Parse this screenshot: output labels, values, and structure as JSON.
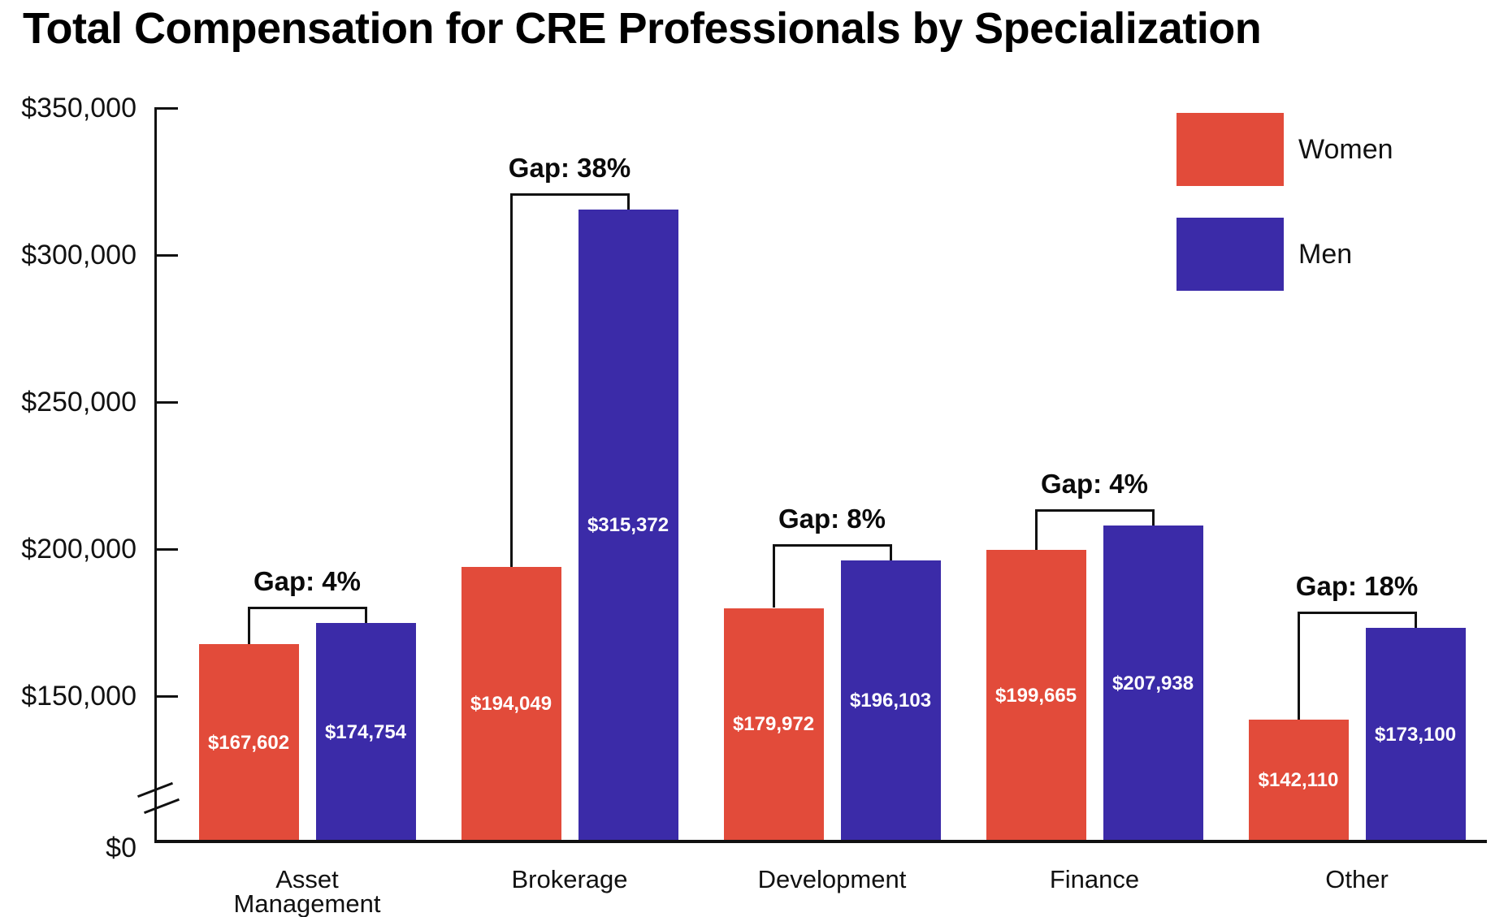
{
  "title": "Total Compensation for CRE Professionals by Specialization",
  "legend": [
    {
      "label": "Women",
      "color": "#E24B3A"
    },
    {
      "label": "Men",
      "color": "#3B2BA8"
    }
  ],
  "colors": {
    "women": "#E24B3A",
    "men": "#3B2BA8",
    "axis": "#111111",
    "gap_text": "#0a0a0a",
    "value_text": "#ffffff"
  },
  "y_axis": {
    "tick_labels": [
      "$350,000",
      "$300,000",
      "$250,000",
      "$200,000",
      "$150,000"
    ],
    "tick_values": [
      350000,
      300000,
      250000,
      200000,
      150000
    ],
    "zero_label": "$0",
    "has_axis_break": true
  },
  "chart_data": {
    "type": "bar",
    "title": "Total Compensation for CRE Professionals by Specialization",
    "categories": [
      "Asset Management",
      "Brokerage",
      "Development",
      "Finance",
      "Other"
    ],
    "series": [
      {
        "name": "Women",
        "values": [
          167602,
          194049,
          179972,
          199665,
          142110
        ]
      },
      {
        "name": "Men",
        "values": [
          174754,
          315372,
          196103,
          207938,
          173100
        ]
      }
    ],
    "value_labels": [
      [
        "$167,602",
        "$194,049",
        "$179,972",
        "$199,665",
        "$142,110"
      ],
      [
        "$174,754",
        "$315,372",
        "$196,103",
        "$207,938",
        "$173,100"
      ]
    ],
    "gap_labels": [
      "Gap: 4%",
      "Gap: 38%",
      "Gap: 8%",
      "Gap: 4%",
      "Gap: 18%"
    ],
    "xlabel": "",
    "ylabel": "",
    "ylim": [
      0,
      350000
    ],
    "axis_break_below": 150000,
    "legend_position": "top-right",
    "grid": false
  }
}
